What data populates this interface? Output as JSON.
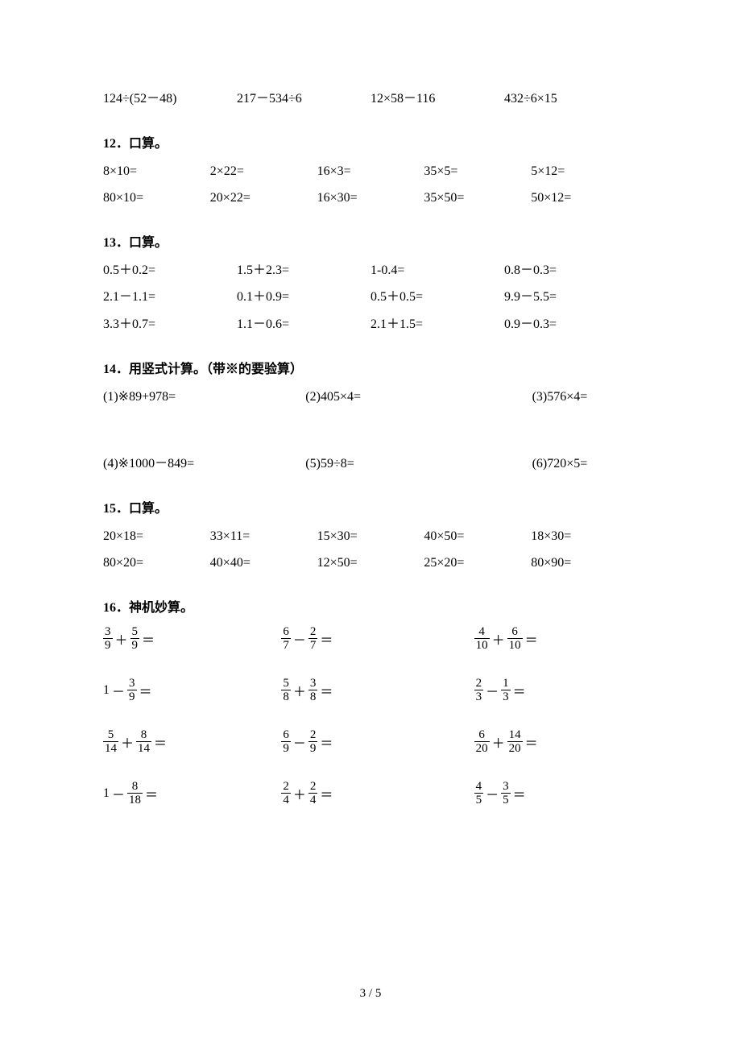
{
  "topRow": [
    "124÷(52－48)",
    "217－534÷6",
    "12×58－116",
    "432÷6×15"
  ],
  "sections": {
    "s12": {
      "title": "12．口算。",
      "rows": [
        [
          "8×10=",
          "2×22=",
          "16×3=",
          "35×5=",
          "5×12="
        ],
        [
          "80×10=",
          "20×22=",
          "16×30=",
          "35×50=",
          "50×12="
        ]
      ]
    },
    "s13": {
      "title": "13．口算。",
      "rows": [
        [
          "0.5＋0.2=",
          "1.5＋2.3=",
          "1-0.4=",
          "0.8－0.3="
        ],
        [
          "2.1－1.1=",
          "0.1＋0.9=",
          "0.5＋0.5=",
          "9.9－5.5="
        ],
        [
          "3.3＋0.7=",
          "1.1－0.6=",
          "2.1＋1.5=",
          "0.9－0.3="
        ]
      ]
    },
    "s14": {
      "title": "14．用竖式计算。（带※的要验算）",
      "row1": [
        "(1)※89+978=",
        "(2)405×4=",
        "(3)576×4="
      ],
      "row2": [
        "(4)※1000－849=",
        "(5)59÷8=",
        "(6)720×5="
      ]
    },
    "s15": {
      "title": "15．口算。",
      "rows": [
        [
          "20×18=",
          "33×11=",
          "15×30=",
          "40×50=",
          "18×30="
        ],
        [
          "80×20=",
          "40×40=",
          "12×50=",
          "25×20=",
          "80×90="
        ]
      ]
    },
    "s16": {
      "title": "16．神机妙算。",
      "rows": [
        [
          {
            "a": {
              "n": "3",
              "d": "9"
            },
            "op": "＋",
            "b": {
              "n": "5",
              "d": "9"
            }
          },
          {
            "a": {
              "n": "6",
              "d": "7"
            },
            "op": "－",
            "b": {
              "n": "2",
              "d": "7"
            }
          },
          {
            "a": {
              "n": "4",
              "d": "10"
            },
            "op": "＋",
            "b": {
              "n": "6",
              "d": "10"
            }
          }
        ],
        [
          {
            "a": "1",
            "op": "－",
            "b": {
              "n": "3",
              "d": "9"
            }
          },
          {
            "a": {
              "n": "5",
              "d": "8"
            },
            "op": "＋",
            "b": {
              "n": "3",
              "d": "8"
            }
          },
          {
            "a": {
              "n": "2",
              "d": "3"
            },
            "op": "－",
            "b": {
              "n": "1",
              "d": "3"
            }
          }
        ],
        [
          {
            "a": {
              "n": "5",
              "d": "14"
            },
            "op": "＋",
            "b": {
              "n": "8",
              "d": "14"
            }
          },
          {
            "a": {
              "n": "6",
              "d": "9"
            },
            "op": "－",
            "b": {
              "n": "2",
              "d": "9"
            }
          },
          {
            "a": {
              "n": "6",
              "d": "20"
            },
            "op": "＋",
            "b": {
              "n": "14",
              "d": "20"
            }
          }
        ],
        [
          {
            "a": "1",
            "op": "－",
            "b": {
              "n": "8",
              "d": "18"
            }
          },
          {
            "a": {
              "n": "2",
              "d": "4"
            },
            "op": "＋",
            "b": {
              "n": "2",
              "d": "4"
            }
          },
          {
            "a": {
              "n": "4",
              "d": "5"
            },
            "op": "－",
            "b": {
              "n": "3",
              "d": "5"
            }
          }
        ]
      ]
    }
  },
  "pageNum": "3 / 5"
}
